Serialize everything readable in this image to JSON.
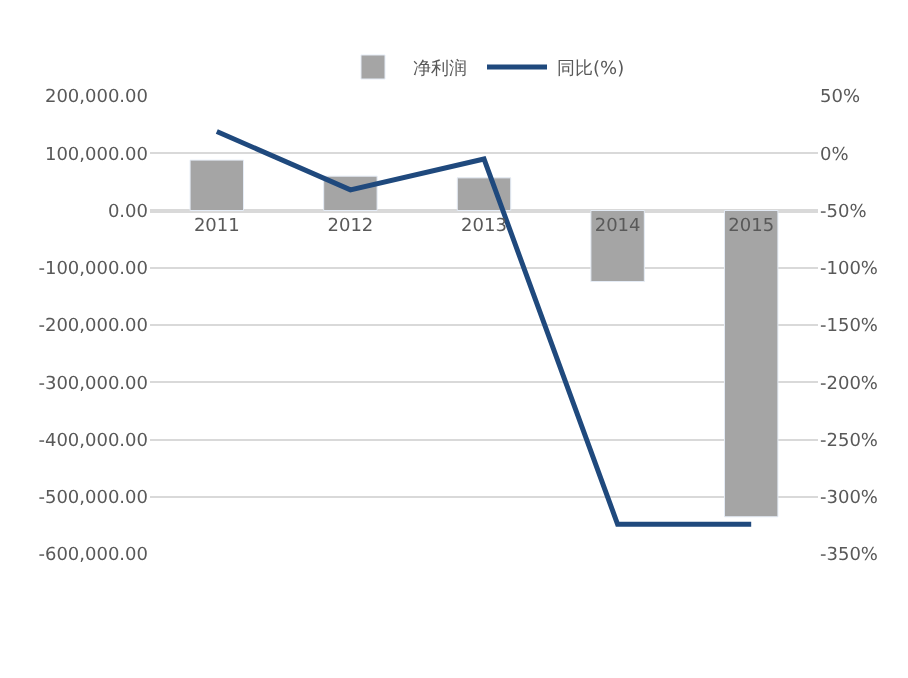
{
  "chart_data": {
    "type": "bar",
    "categories": [
      "2011",
      "2012",
      "2013",
      "2014",
      "2015"
    ],
    "series": [
      {
        "name": "净利润",
        "color": "#a5a5a5",
        "values": [
          88000,
          60000,
          57000,
          -124000,
          -535000
        ]
      },
      {
        "name": "同比(%)",
        "type": "line",
        "axis": "y2",
        "color": "#1f497d",
        "marker": "none",
        "values": [
          19,
          -32,
          -5,
          -324,
          -324
        ]
      }
    ],
    "ylim": [
      -600000,
      200000
    ],
    "yticks": [
      {
        "value": 200000,
        "label": "200,000.00"
      },
      {
        "value": 100000,
        "label": "100,000.00"
      },
      {
        "value": 0,
        "label": "0.00"
      },
      {
        "value": -100000,
        "label": "-100,000.00"
      },
      {
        "value": -200000,
        "label": "-200,000.00"
      },
      {
        "value": -300000,
        "label": "-300,000.00"
      },
      {
        "value": -400000,
        "label": "-400,000.00"
      },
      {
        "value": -500000,
        "label": "-500,000.00"
      },
      {
        "value": -600000,
        "label": "-600,000.00"
      }
    ],
    "y2lim": [
      -350,
      50
    ],
    "y2ticks": [
      {
        "value": 50,
        "label": "50%"
      },
      {
        "value": 0,
        "label": "0%"
      },
      {
        "value": -50,
        "label": "-50%"
      },
      {
        "value": -100,
        "label": "-100%"
      },
      {
        "value": -150,
        "label": "-150%"
      },
      {
        "value": -200,
        "label": "-200%"
      },
      {
        "value": -250,
        "label": "-250%"
      },
      {
        "value": -300,
        "label": "-300%"
      },
      {
        "value": -350,
        "label": "-350%"
      }
    ],
    "grid": "y",
    "legend": "top"
  }
}
